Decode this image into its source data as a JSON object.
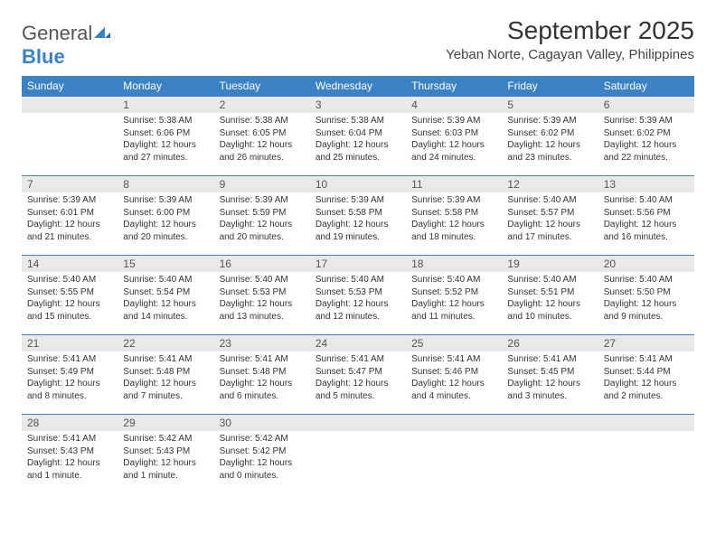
{
  "brand": {
    "name_a": "General",
    "name_b": "Blue"
  },
  "title": "September 2025",
  "location": "Yeban Norte, Cagayan Valley, Philippines",
  "colors": {
    "header_bg": "#3b82c4",
    "header_text": "#ffffff",
    "daynum_bg": "#e9e9e9",
    "row_divider": "#3b82c4",
    "body_text": "#333333"
  },
  "weekdays": [
    "Sunday",
    "Monday",
    "Tuesday",
    "Wednesday",
    "Thursday",
    "Friday",
    "Saturday"
  ],
  "firstDayIndex": 1,
  "daysInMonth": 30,
  "days": {
    "1": {
      "sunrise": "5:38 AM",
      "sunset": "6:06 PM",
      "daylight": "12 hours and 27 minutes."
    },
    "2": {
      "sunrise": "5:38 AM",
      "sunset": "6:05 PM",
      "daylight": "12 hours and 26 minutes."
    },
    "3": {
      "sunrise": "5:38 AM",
      "sunset": "6:04 PM",
      "daylight": "12 hours and 25 minutes."
    },
    "4": {
      "sunrise": "5:39 AM",
      "sunset": "6:03 PM",
      "daylight": "12 hours and 24 minutes."
    },
    "5": {
      "sunrise": "5:39 AM",
      "sunset": "6:02 PM",
      "daylight": "12 hours and 23 minutes."
    },
    "6": {
      "sunrise": "5:39 AM",
      "sunset": "6:02 PM",
      "daylight": "12 hours and 22 minutes."
    },
    "7": {
      "sunrise": "5:39 AM",
      "sunset": "6:01 PM",
      "daylight": "12 hours and 21 minutes."
    },
    "8": {
      "sunrise": "5:39 AM",
      "sunset": "6:00 PM",
      "daylight": "12 hours and 20 minutes."
    },
    "9": {
      "sunrise": "5:39 AM",
      "sunset": "5:59 PM",
      "daylight": "12 hours and 20 minutes."
    },
    "10": {
      "sunrise": "5:39 AM",
      "sunset": "5:58 PM",
      "daylight": "12 hours and 19 minutes."
    },
    "11": {
      "sunrise": "5:39 AM",
      "sunset": "5:58 PM",
      "daylight": "12 hours and 18 minutes."
    },
    "12": {
      "sunrise": "5:40 AM",
      "sunset": "5:57 PM",
      "daylight": "12 hours and 17 minutes."
    },
    "13": {
      "sunrise": "5:40 AM",
      "sunset": "5:56 PM",
      "daylight": "12 hours and 16 minutes."
    },
    "14": {
      "sunrise": "5:40 AM",
      "sunset": "5:55 PM",
      "daylight": "12 hours and 15 minutes."
    },
    "15": {
      "sunrise": "5:40 AM",
      "sunset": "5:54 PM",
      "daylight": "12 hours and 14 minutes."
    },
    "16": {
      "sunrise": "5:40 AM",
      "sunset": "5:53 PM",
      "daylight": "12 hours and 13 minutes."
    },
    "17": {
      "sunrise": "5:40 AM",
      "sunset": "5:53 PM",
      "daylight": "12 hours and 12 minutes."
    },
    "18": {
      "sunrise": "5:40 AM",
      "sunset": "5:52 PM",
      "daylight": "12 hours and 11 minutes."
    },
    "19": {
      "sunrise": "5:40 AM",
      "sunset": "5:51 PM",
      "daylight": "12 hours and 10 minutes."
    },
    "20": {
      "sunrise": "5:40 AM",
      "sunset": "5:50 PM",
      "daylight": "12 hours and 9 minutes."
    },
    "21": {
      "sunrise": "5:41 AM",
      "sunset": "5:49 PM",
      "daylight": "12 hours and 8 minutes."
    },
    "22": {
      "sunrise": "5:41 AM",
      "sunset": "5:48 PM",
      "daylight": "12 hours and 7 minutes."
    },
    "23": {
      "sunrise": "5:41 AM",
      "sunset": "5:48 PM",
      "daylight": "12 hours and 6 minutes."
    },
    "24": {
      "sunrise": "5:41 AM",
      "sunset": "5:47 PM",
      "daylight": "12 hours and 5 minutes."
    },
    "25": {
      "sunrise": "5:41 AM",
      "sunset": "5:46 PM",
      "daylight": "12 hours and 4 minutes."
    },
    "26": {
      "sunrise": "5:41 AM",
      "sunset": "5:45 PM",
      "daylight": "12 hours and 3 minutes."
    },
    "27": {
      "sunrise": "5:41 AM",
      "sunset": "5:44 PM",
      "daylight": "12 hours and 2 minutes."
    },
    "28": {
      "sunrise": "5:41 AM",
      "sunset": "5:43 PM",
      "daylight": "12 hours and 1 minute."
    },
    "29": {
      "sunrise": "5:42 AM",
      "sunset": "5:43 PM",
      "daylight": "12 hours and 1 minute."
    },
    "30": {
      "sunrise": "5:42 AM",
      "sunset": "5:42 PM",
      "daylight": "12 hours and 0 minutes."
    }
  },
  "labels": {
    "sunrise": "Sunrise:",
    "sunset": "Sunset:",
    "daylight": "Daylight:"
  }
}
